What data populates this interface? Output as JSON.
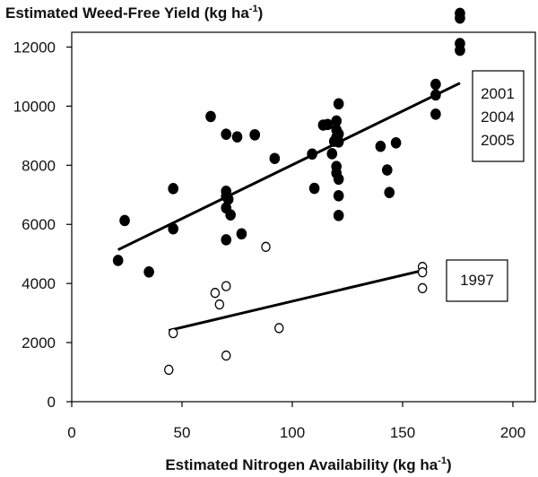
{
  "chart_data": {
    "type": "scatter",
    "title": "Estimated Weed-Free Yield",
    "title_unit": "(kg ha",
    "title_sup": "-1",
    "title_close": ")",
    "xlabel": "Estimated Nitrogen Availability",
    "xlabel_unit": "(kg ha",
    "xlabel_sup": "-1",
    "xlabel_close": ")",
    "xlim": [
      0,
      200
    ],
    "ylim": [
      0,
      12500
    ],
    "xticks": [
      0,
      50,
      100,
      150,
      200
    ],
    "yticks": [
      0,
      2000,
      4000,
      6000,
      8000,
      10000,
      12000
    ],
    "grid": false,
    "series": [
      {
        "name_lines": [
          "2001",
          "2004",
          "2005"
        ],
        "marker": "filled-circle",
        "color": "#000000",
        "points": [
          [
            21,
            4780
          ],
          [
            24,
            6130
          ],
          [
            35,
            4390
          ],
          [
            46,
            7210
          ],
          [
            46,
            5850
          ],
          [
            63,
            9650
          ],
          [
            70,
            9050
          ],
          [
            70,
            7120
          ],
          [
            70,
            6950
          ],
          [
            70,
            6560
          ],
          [
            70,
            5480
          ],
          [
            71,
            6850
          ],
          [
            72,
            6320
          ],
          [
            75,
            8960
          ],
          [
            77,
            5680
          ],
          [
            83,
            9030
          ],
          [
            83,
            9030
          ],
          [
            92,
            8230
          ],
          [
            109,
            8380
          ],
          [
            110,
            7220
          ],
          [
            114,
            9360
          ],
          [
            116,
            9380
          ],
          [
            118,
            8390
          ],
          [
            119,
            8810
          ],
          [
            120,
            9500
          ],
          [
            120,
            9200
          ],
          [
            120,
            8950
          ],
          [
            120,
            7960
          ],
          [
            120,
            7740
          ],
          [
            121,
            10080
          ],
          [
            121,
            9060
          ],
          [
            121,
            8790
          ],
          [
            121,
            7530
          ],
          [
            121,
            6970
          ],
          [
            121,
            6300
          ],
          [
            140,
            8640
          ],
          [
            143,
            7840
          ],
          [
            144,
            7080
          ],
          [
            147,
            8760
          ],
          [
            165,
            10740
          ],
          [
            165,
            10380
          ],
          [
            165,
            9730
          ],
          [
            176,
            13140
          ],
          [
            176,
            12980
          ],
          [
            176,
            12120
          ],
          [
            176,
            11890
          ]
        ],
        "trend": [
          [
            21,
            5140
          ],
          [
            176,
            10780
          ]
        ]
      },
      {
        "name_lines": [
          "1997"
        ],
        "marker": "open-circle",
        "color": "#000000",
        "points": [
          [
            44,
            1080
          ],
          [
            46,
            2320
          ],
          [
            65,
            3680
          ],
          [
            67,
            3290
          ],
          [
            70,
            3910
          ],
          [
            70,
            1560
          ],
          [
            88,
            5240
          ],
          [
            94,
            2490
          ],
          [
            159,
            4560
          ],
          [
            159,
            4380
          ],
          [
            159,
            3840
          ]
        ],
        "trend": [
          [
            44,
            2410
          ],
          [
            159,
            4440
          ]
        ]
      }
    ]
  }
}
